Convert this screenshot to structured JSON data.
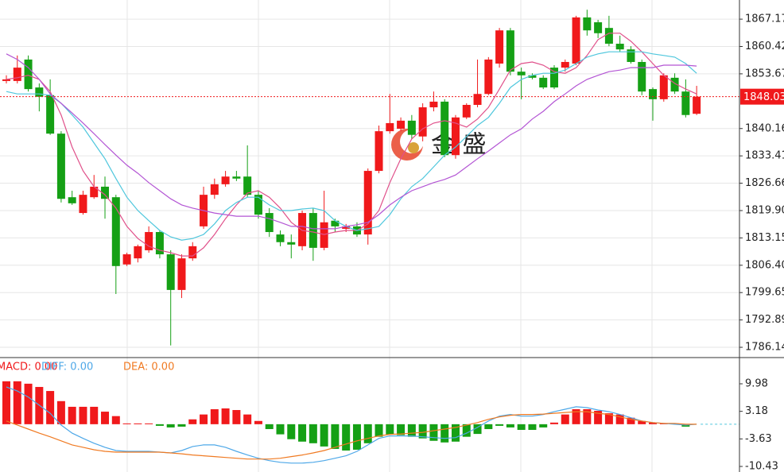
{
  "watermark": "金 盛",
  "chart_data": [
    {
      "type": "candlestick",
      "up_color": "#f0191b",
      "down_color": "#15a015",
      "ylim": [
        1783.6,
        1871.9
      ],
      "yticks": [
        1867.17,
        1860.42,
        1853.67,
        1840.16,
        1833.41,
        1826.66,
        {
          "value": 1819.9,
          "label": "1819.90"
        },
        1813.15,
        {
          "value": 1806.4,
          "label": "1806.40"
        },
        1799.65,
        1792.89,
        1786.14
      ],
      "grid": true,
      "last_price": 1848.03,
      "open": [
        1851.9,
        1851.9,
        1857.2,
        1850.3,
        1848.4,
        1838.9,
        1823.2,
        1819.3,
        1823.2,
        1825.8,
        1823.2,
        1806.6,
        1808.1,
        1810.1,
        1814.6,
        1809.1,
        1800.3,
        1808.1,
        1816.0,
        1823.8,
        1826.4,
        1828.3,
        1828.3,
        1823.8,
        1819.3,
        1814.0,
        1812.1,
        1811.1,
        1819.3,
        1810.7,
        1817.4,
        1815.4,
        1816.0,
        1814.0,
        1829.7,
        1839.5,
        1840.1,
        1842.1,
        1838.2,
        1845.4,
        1846.8,
        1833.6,
        1842.9,
        1846.0,
        1848.7,
        1856.2,
        1864.4,
        1854.2,
        1853.3,
        1852.7,
        1855.2,
        1855.2,
        1856.2,
        1867.6,
        1866.4,
        1865.0,
        1861.1,
        1859.7,
        1856.6,
        1849.9,
        1847.4,
        1852.7,
        1849.3,
        1843.8
      ],
      "high": [
        1853.3,
        1858.2,
        1858.2,
        1851.3,
        1852.3,
        1839.5,
        1824.8,
        1824.8,
        1828.7,
        1828.3,
        1823.8,
        1809.5,
        1811.5,
        1816.0,
        1815.0,
        1810.1,
        1809.1,
        1812.1,
        1825.8,
        1827.8,
        1829.7,
        1829.7,
        1836.0,
        1824.8,
        1820.5,
        1815.0,
        1814.0,
        1819.9,
        1820.5,
        1824.8,
        1817.9,
        1816.6,
        1817.0,
        1830.3,
        1840.9,
        1848.7,
        1842.9,
        1843.5,
        1846.4,
        1849.3,
        1847.4,
        1843.5,
        1846.4,
        1857.2,
        1857.8,
        1865.0,
        1865.0,
        1855.2,
        1853.8,
        1853.3,
        1855.8,
        1857.2,
        1868.0,
        1869.5,
        1867.0,
        1868.0,
        1863.1,
        1860.5,
        1857.2,
        1850.3,
        1853.8,
        1853.8,
        1852.3,
        1850.7
      ],
      "low": [
        1851.3,
        1851.3,
        1849.3,
        1844.4,
        1838.6,
        1821.9,
        1821.3,
        1818.9,
        1822.8,
        1817.9,
        1799.3,
        1806.2,
        1807.1,
        1809.5,
        1808.1,
        1786.6,
        1798.3,
        1807.5,
        1815.4,
        1822.8,
        1825.8,
        1827.2,
        1823.2,
        1817.9,
        1813.4,
        1811.1,
        1808.1,
        1810.1,
        1807.5,
        1810.1,
        1814.6,
        1814.6,
        1813.4,
        1811.5,
        1829.1,
        1838.9,
        1839.5,
        1837.6,
        1837.0,
        1844.4,
        1833.1,
        1832.7,
        1842.5,
        1845.4,
        1848.4,
        1855.2,
        1853.3,
        1847.4,
        1852.3,
        1849.9,
        1849.9,
        1854.2,
        1855.8,
        1863.1,
        1862.5,
        1860.5,
        1859.1,
        1856.2,
        1848.4,
        1842.1,
        1846.8,
        1848.7,
        1842.9,
        1843.5
      ],
      "close": [
        1852.3,
        1855.2,
        1849.9,
        1848.0,
        1838.9,
        1822.8,
        1821.7,
        1823.8,
        1825.8,
        1822.8,
        1806.2,
        1809.1,
        1811.1,
        1814.6,
        1809.1,
        1800.3,
        1808.1,
        1811.1,
        1823.8,
        1826.4,
        1828.3,
        1827.8,
        1823.8,
        1818.9,
        1814.6,
        1812.1,
        1811.5,
        1819.3,
        1810.7,
        1817.0,
        1816.0,
        1816.0,
        1814.0,
        1829.7,
        1839.5,
        1841.5,
        1842.1,
        1838.6,
        1845.4,
        1846.8,
        1833.6,
        1842.9,
        1846.0,
        1848.7,
        1857.2,
        1864.4,
        1854.2,
        1853.3,
        1852.7,
        1850.3,
        1850.3,
        1856.6,
        1867.6,
        1864.4,
        1863.7,
        1861.1,
        1859.7,
        1856.6,
        1849.3,
        1847.4,
        1853.3,
        1849.3,
        1843.5,
        1848.03
      ],
      "series": [
        {
          "color": "#e0508a",
          "values": [
            1852.3,
            1852.7,
            1853.3,
            1852.3,
            1849.3,
            1843.5,
            1835.6,
            1829.7,
            1825.8,
            1823.8,
            1820.5,
            1816.0,
            1813.0,
            1811.1,
            1810.1,
            1809.5,
            1808.7,
            1808.7,
            1810.7,
            1814.0,
            1817.9,
            1821.3,
            1824.2,
            1824.8,
            1823.2,
            1820.5,
            1817.0,
            1815.0,
            1814.6,
            1814.0,
            1814.6,
            1815.0,
            1815.0,
            1816.6,
            1819.9,
            1826.8,
            1832.7,
            1837.6,
            1840.1,
            1841.5,
            1842.1,
            1841.5,
            1840.5,
            1842.5,
            1845.4,
            1849.9,
            1854.6,
            1856.2,
            1856.6,
            1855.8,
            1854.2,
            1853.8,
            1855.2,
            1858.2,
            1862.1,
            1863.7,
            1863.7,
            1861.7,
            1859.1,
            1856.2,
            1853.3,
            1851.3,
            1849.9,
            1848.7
          ]
        },
        {
          "color": "#4fc7dd",
          "values": [
            1849.3,
            1848.7,
            1848.7,
            1848.7,
            1848.4,
            1846.4,
            1843.5,
            1840.5,
            1836.6,
            1832.7,
            1827.8,
            1823.2,
            1819.9,
            1817.4,
            1815.0,
            1813.4,
            1812.6,
            1813.0,
            1814.0,
            1816.6,
            1819.9,
            1821.9,
            1823.2,
            1823.2,
            1821.3,
            1819.9,
            1819.9,
            1820.3,
            1820.5,
            1819.9,
            1817.4,
            1816.0,
            1815.0,
            1815.4,
            1816.0,
            1818.9,
            1822.8,
            1825.8,
            1827.8,
            1830.7,
            1833.6,
            1835.6,
            1838.2,
            1840.9,
            1842.9,
            1846.4,
            1850.3,
            1852.3,
            1853.3,
            1853.8,
            1853.8,
            1854.6,
            1856.2,
            1857.8,
            1858.6,
            1859.1,
            1859.1,
            1859.1,
            1859.1,
            1858.6,
            1858.2,
            1857.8,
            1856.2,
            1853.8
          ]
        },
        {
          "color": "#b355d4",
          "values": [
            1858.6,
            1857.2,
            1855.2,
            1852.3,
            1848.7,
            1846.4,
            1844.0,
            1841.5,
            1838.9,
            1836.2,
            1833.6,
            1831.1,
            1829.1,
            1826.8,
            1824.8,
            1822.8,
            1821.3,
            1820.5,
            1819.9,
            1819.3,
            1818.9,
            1818.5,
            1818.5,
            1818.5,
            1817.9,
            1817.0,
            1816.0,
            1816.0,
            1815.4,
            1815.4,
            1815.4,
            1816.0,
            1816.4,
            1817.0,
            1818.9,
            1821.3,
            1823.2,
            1824.8,
            1825.8,
            1826.8,
            1827.6,
            1828.7,
            1830.7,
            1832.7,
            1834.6,
            1836.6,
            1838.6,
            1840.1,
            1842.5,
            1844.4,
            1846.8,
            1848.7,
            1850.7,
            1852.3,
            1853.3,
            1854.2,
            1854.6,
            1855.2,
            1855.2,
            1855.2,
            1855.8,
            1855.8,
            1855.8,
            1855.6
          ]
        }
      ]
    },
    {
      "type": "macd",
      "legend": [
        {
          "text": "MACD: 0.00",
          "color": "#f0191b"
        },
        {
          "text": "DIFF: 0.00",
          "color": "#4ea8e8"
        },
        {
          "text": "DEA: 0.00",
          "color": "#f07a22"
        }
      ],
      "ylim": [
        -11.8,
        16.06
      ],
      "yticks": [
        9.98,
        3.18,
        -3.63,
        -10.43
      ],
      "up_color": "#f0191b",
      "down_color": "#15a015",
      "zero_color": "#4fc7dd",
      "bars": [
        10.6,
        10.6,
        10.0,
        9.2,
        8.2,
        5.7,
        4.3,
        4.3,
        4.3,
        3.1,
        2.0,
        0.2,
        0.2,
        0.2,
        -0.4,
        -0.8,
        -0.6,
        1.2,
        2.4,
        3.7,
        3.9,
        3.5,
        2.4,
        0.8,
        -1.2,
        -2.5,
        -3.7,
        -4.3,
        -4.7,
        -5.5,
        -6.1,
        -6.5,
        -6.3,
        -4.7,
        -3.1,
        -2.5,
        -2.7,
        -3.1,
        -3.5,
        -4.1,
        -4.5,
        -4.3,
        -3.1,
        -2.4,
        -1.2,
        -0.4,
        -0.8,
        -1.4,
        -1.4,
        -0.8,
        0.4,
        2.4,
        3.7,
        3.7,
        3.3,
        2.7,
        2.4,
        1.6,
        0.8,
        0.4,
        0.2,
        0.2,
        -0.6,
        0
      ],
      "series": [
        {
          "color": "#4ea8e8",
          "values": [
            9.2,
            8.2,
            6.7,
            4.7,
            2.7,
            -0.2,
            -2.2,
            -3.5,
            -4.7,
            -5.7,
            -6.5,
            -6.7,
            -6.7,
            -6.7,
            -6.9,
            -7.1,
            -6.5,
            -5.5,
            -5.1,
            -5.1,
            -5.7,
            -6.7,
            -7.6,
            -8.4,
            -9.0,
            -9.4,
            -9.6,
            -9.6,
            -9.4,
            -9.0,
            -8.4,
            -7.8,
            -6.7,
            -5.1,
            -3.5,
            -2.9,
            -2.9,
            -2.9,
            -3.1,
            -3.3,
            -3.5,
            -3.3,
            -2.2,
            -0.8,
            0.8,
            2.0,
            2.4,
            2.0,
            2.0,
            2.4,
            3.1,
            3.7,
            4.3,
            4.1,
            3.5,
            3.1,
            2.4,
            1.6,
            0.8,
            0.4,
            0.2,
            0,
            -0.2,
            0
          ]
        },
        {
          "color": "#f07a22",
          "values": [
            0.8,
            -0.2,
            -1.2,
            -2.2,
            -3.1,
            -4.1,
            -5.1,
            -5.7,
            -6.3,
            -6.7,
            -6.9,
            -6.9,
            -6.9,
            -6.9,
            -6.9,
            -7.1,
            -7.3,
            -7.6,
            -7.8,
            -8.0,
            -8.2,
            -8.4,
            -8.6,
            -8.6,
            -8.6,
            -8.4,
            -8.0,
            -7.6,
            -7.1,
            -6.5,
            -5.7,
            -4.9,
            -4.1,
            -3.5,
            -2.9,
            -2.5,
            -2.4,
            -2.2,
            -2.0,
            -1.6,
            -1.2,
            -0.8,
            -0.2,
            0.4,
            1.2,
            1.8,
            2.2,
            2.4,
            2.4,
            2.5,
            2.7,
            2.9,
            3.1,
            3.1,
            2.7,
            2.4,
            1.8,
            1.2,
            0.8,
            0.4,
            0.2,
            0.2,
            0,
            0
          ]
        }
      ]
    }
  ]
}
